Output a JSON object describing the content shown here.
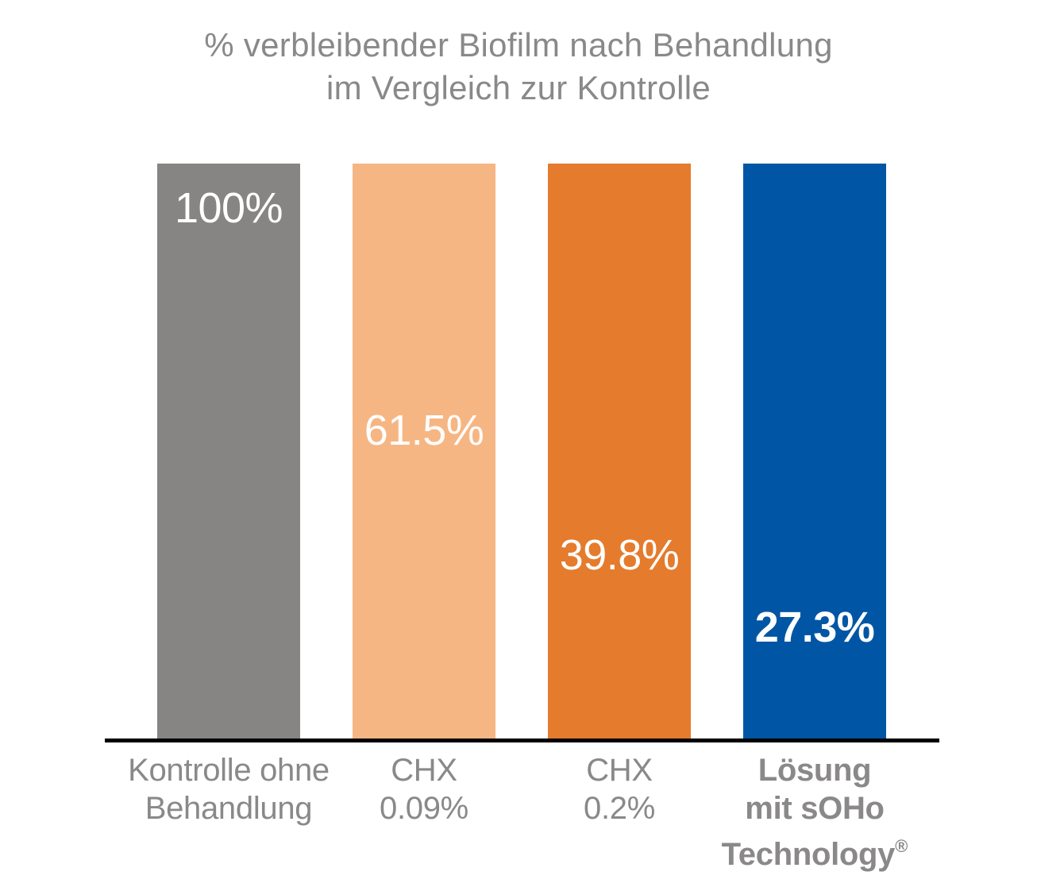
{
  "page": {
    "background": "#ffffff"
  },
  "title": {
    "line1": "% verbleibender Biofilm nach Behandlung",
    "line2": "im Vergleich zur Kontrolle",
    "color": "#8a8888"
  },
  "chart_data": {
    "type": "bar",
    "title": "% verbleibender Biofilm nach Behandlung im Vergleich zur Kontrolle",
    "categories": [
      "Kontrolle ohne Behandlung",
      "CHX 0.09%",
      "CHX 0.2%",
      "Lösung mit sOHo Technology®"
    ],
    "values": [
      100,
      61.5,
      39.8,
      27.3
    ],
    "value_labels": [
      "100%",
      "61.5%",
      "39.8%",
      "27.3%"
    ],
    "unit": "%",
    "ylim": [
      0,
      100
    ],
    "grid": false,
    "legend": false,
    "layout_hint": "all four bars are drawn at full height; each value label sits at the vertical position proportional to its value",
    "axis_line_color": "#000000",
    "value_text_color": "#ffffff",
    "category_text_color": "#8a8888",
    "bars": [
      {
        "value": 100,
        "value_label": "100%",
        "value_bold": false,
        "color": "#878583",
        "category_lines": [
          "Kontrolle ohne",
          "Behandlung"
        ],
        "category_bold": false
      },
      {
        "value": 61.5,
        "value_label": "61.5%",
        "value_bold": false,
        "color": "#f6b683",
        "category_lines": [
          "CHX",
          "0.09%"
        ],
        "category_bold": false
      },
      {
        "value": 39.8,
        "value_label": "39.8%",
        "value_bold": false,
        "color": "#e57b2c",
        "category_lines": [
          "CHX",
          "0.2%"
        ],
        "category_bold": false
      },
      {
        "value": 27.3,
        "value_label": "27.3%",
        "value_bold": true,
        "color": "#0056a4",
        "category_lines": [
          "Lösung",
          "mit sOHo",
          "Technology"
        ],
        "category_reg_mark": "®",
        "category_bold": true
      }
    ]
  }
}
